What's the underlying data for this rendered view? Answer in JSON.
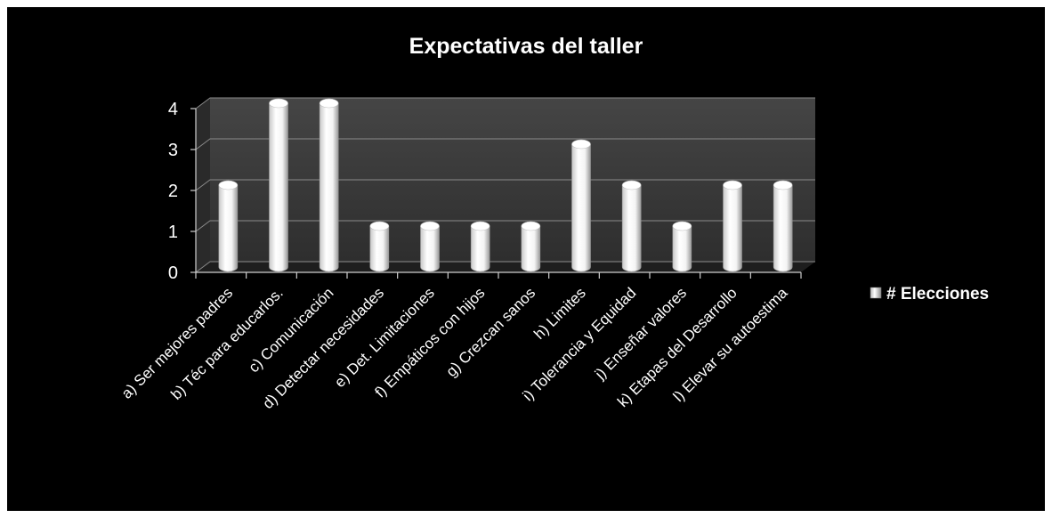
{
  "chart_data": {
    "type": "bar",
    "style": "3d-cylinder",
    "title": "Expectativas del taller",
    "xlabel": "",
    "ylabel": "",
    "ylim": [
      0,
      4
    ],
    "yticks": [
      "0",
      "1",
      "2",
      "3",
      "4"
    ],
    "grid": true,
    "legend_position": "right",
    "categories": [
      "a)   Ser mejores padres",
      "b)  Téc para educarlos.",
      "c)    Comunicación",
      "d)  Detectar necesidades",
      "e)  Det. Limitaciones",
      "f)    Empáticos con hijos",
      "g) Crezcan sanos",
      "h) Limites",
      "i) Tolerancia y Equidad",
      "j)      Enseñar valores",
      "k) Etapas del Desarrollo",
      "l)      Elevar su autoestima"
    ],
    "series": [
      {
        "name": "# Elecciones",
        "values": [
          2,
          4,
          4,
          1,
          1,
          1,
          1,
          3,
          2,
          1,
          2,
          2
        ]
      }
    ],
    "colors": {
      "background": "#000000",
      "wall": "#3c3c3c",
      "floor": "#222222",
      "bar": "#ffffff",
      "text": "#ffffff"
    }
  }
}
